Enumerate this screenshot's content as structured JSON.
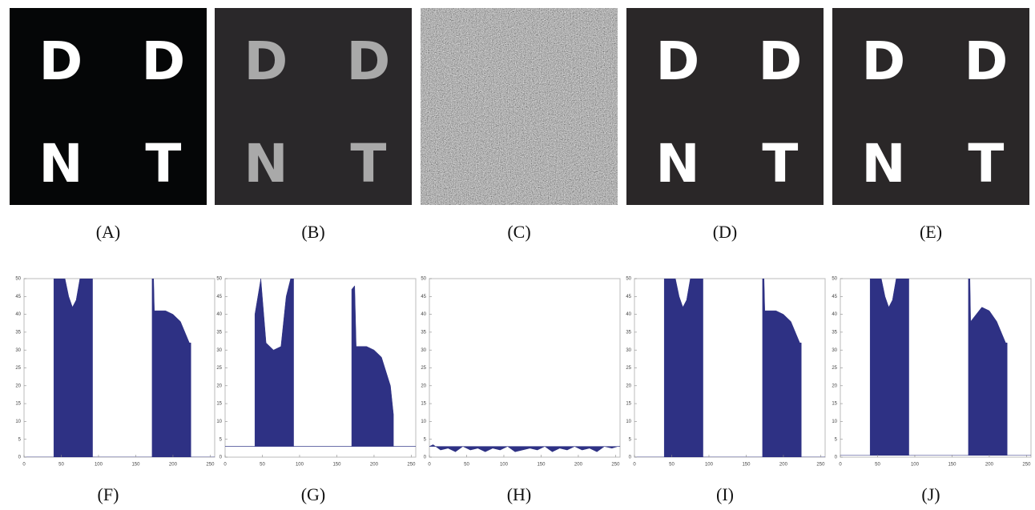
{
  "figure": {
    "images": [
      {
        "caption": "(A)",
        "background": "#050607",
        "ink": "#ffffff",
        "letters": [
          "D",
          "D",
          "N",
          "T"
        ]
      },
      {
        "caption": "(B)",
        "background": "#2a282a",
        "ink": "#a9a9a9",
        "letters": [
          "D",
          "D",
          "N",
          "T"
        ]
      },
      {
        "caption": "(C)",
        "background": "#707070",
        "noise": true,
        "letters": []
      },
      {
        "caption": "(D)",
        "background": "#2a2728",
        "ink": "#ffffff",
        "letters": [
          "D",
          "D",
          "N",
          "T"
        ]
      },
      {
        "caption": "(E)",
        "background": "#2a2728",
        "ink": "#ffffff",
        "letters": [
          "D",
          "D",
          "N",
          "T"
        ]
      }
    ]
  },
  "chart_data": [
    {
      "type": "area",
      "title": "(F)",
      "color": "#2e3184",
      "xlim": [
        0,
        256
      ],
      "ylim": [
        0,
        50
      ],
      "xticks": [
        0,
        50,
        100,
        150,
        200,
        250
      ],
      "yticks": [
        0,
        5,
        10,
        15,
        20,
        25,
        30,
        35,
        40,
        45,
        50
      ],
      "x": [
        0,
        40,
        40,
        55,
        60,
        65,
        70,
        75,
        92,
        92,
        172,
        172,
        174,
        175,
        190,
        200,
        210,
        222,
        224,
        224,
        256
      ],
      "values": [
        0,
        0,
        50,
        50,
        45,
        42,
        44,
        50,
        50,
        0,
        0,
        50,
        50,
        41,
        41,
        40,
        38,
        32,
        32,
        0,
        0
      ]
    },
    {
      "type": "area",
      "title": "(G)",
      "color": "#2e3184",
      "xlim": [
        0,
        256
      ],
      "ylim": [
        0,
        50
      ],
      "xticks": [
        0,
        50,
        100,
        150,
        200,
        250
      ],
      "yticks": [
        0,
        5,
        10,
        15,
        20,
        25,
        30,
        35,
        40,
        45,
        50
      ],
      "x": [
        0,
        40,
        40,
        48,
        55,
        65,
        75,
        82,
        88,
        92,
        92,
        170,
        170,
        174,
        176,
        190,
        200,
        210,
        222,
        226,
        226,
        256
      ],
      "values": [
        3,
        3,
        40,
        50,
        32,
        30,
        31,
        45,
        50,
        50,
        3,
        3,
        47,
        48,
        31,
        31,
        30,
        28,
        20,
        12,
        3,
        3
      ]
    },
    {
      "type": "area",
      "title": "(H)",
      "color": "#2e3184",
      "xlim": [
        0,
        256
      ],
      "ylim": [
        0,
        50
      ],
      "xticks": [
        0,
        50,
        100,
        150,
        200,
        250
      ],
      "yticks": [
        0,
        5,
        10,
        15,
        20,
        25,
        30,
        35,
        40,
        45,
        50
      ],
      "x": [
        0,
        5,
        15,
        25,
        35,
        45,
        55,
        65,
        75,
        85,
        95,
        105,
        115,
        125,
        135,
        145,
        155,
        165,
        175,
        185,
        195,
        205,
        215,
        225,
        235,
        245,
        253,
        256
      ],
      "values": [
        3,
        3.5,
        2,
        2.5,
        1.5,
        3,
        2,
        2.5,
        1.5,
        2.5,
        2,
        3,
        1.5,
        2,
        2.5,
        2,
        3,
        1.5,
        2.5,
        2,
        3,
        2,
        2.5,
        1.5,
        3,
        2.5,
        3,
        3
      ]
    },
    {
      "type": "area",
      "title": "(I)",
      "color": "#2e3184",
      "xlim": [
        0,
        256
      ],
      "ylim": [
        0,
        50
      ],
      "xticks": [
        0,
        50,
        100,
        150,
        200,
        250
      ],
      "yticks": [
        0,
        5,
        10,
        15,
        20,
        25,
        30,
        35,
        40,
        45,
        50
      ],
      "x": [
        0,
        40,
        40,
        55,
        60,
        65,
        70,
        75,
        92,
        92,
        172,
        172,
        174,
        175,
        190,
        200,
        210,
        222,
        224,
        224,
        256
      ],
      "values": [
        0,
        0,
        50,
        50,
        45,
        42,
        44,
        50,
        50,
        0,
        0,
        50,
        50,
        41,
        41,
        40,
        38,
        32,
        32,
        0,
        0
      ]
    },
    {
      "type": "area",
      "title": "(J)",
      "color": "#2e3184",
      "xlim": [
        0,
        256
      ],
      "ylim": [
        0,
        50
      ],
      "xticks": [
        0,
        50,
        100,
        150,
        200,
        250
      ],
      "yticks": [
        0,
        5,
        10,
        15,
        20,
        25,
        30,
        35,
        40,
        45,
        50
      ],
      "x": [
        0,
        40,
        40,
        55,
        60,
        65,
        70,
        75,
        92,
        92,
        172,
        172,
        174,
        175,
        190,
        200,
        210,
        222,
        224,
        224,
        256
      ],
      "values": [
        0.5,
        0.5,
        50,
        50,
        45,
        42,
        44,
        50,
        50,
        0.5,
        0.5,
        50,
        50,
        38,
        42,
        41,
        38,
        32,
        32,
        0.5,
        0.5
      ]
    }
  ]
}
